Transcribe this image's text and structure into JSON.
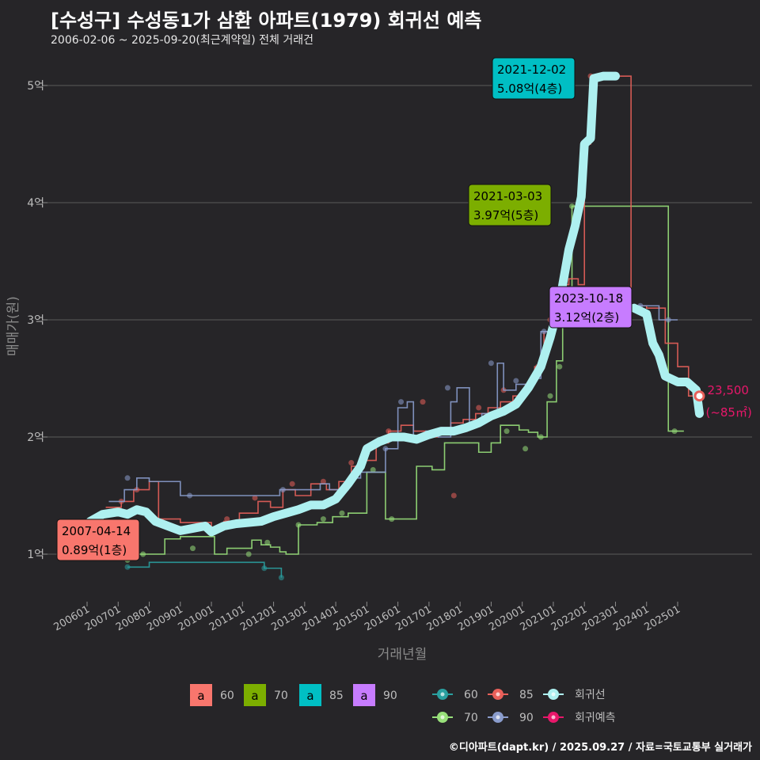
{
  "title": "[수성구] 수성동1가 삼환 아파트(1979) 회귀선 예측",
  "subtitle": "2006-02-06 ~ 2025-09-20(최근계약일) 전체 거래건",
  "footer": "©디아파트(dapt.kr) / 2025.09.27 / 자료=국토교통부 실거래가",
  "colors": {
    "background": "#262528",
    "grid": "#5a5a5a",
    "area60": "#f8766d",
    "area70": "#7cae00",
    "area85": "#00bfc4",
    "area90": "#c77cff",
    "line60": "#2aa0a0",
    "line70": "#98e07a",
    "line85": "#e8605a",
    "line90": "#8a9ccc",
    "regression": "#aef0f0",
    "forecast": "#e8176a"
  },
  "chart_data": {
    "type": "line",
    "xlabel": "거래년월",
    "ylabel": "매매가(원)",
    "x_domain": [
      "2006-01",
      "2026-01"
    ],
    "ylim": [
      0.6,
      5.3
    ],
    "x_ticks": [
      "200601",
      "200701",
      "200801",
      "200901",
      "201001",
      "201101",
      "201201",
      "201301",
      "201401",
      "201501",
      "201601",
      "201701",
      "201801",
      "201901",
      "202001",
      "202101",
      "202201",
      "202301",
      "202401",
      "202501"
    ],
    "y_ticks": [
      {
        "value": 1,
        "label": "1억"
      },
      {
        "value": 2,
        "label": "2억"
      },
      {
        "value": 3,
        "label": "3억"
      },
      {
        "value": 4,
        "label": "4억"
      },
      {
        "value": 5,
        "label": "5억"
      }
    ],
    "grid": true,
    "series": [
      {
        "name": "60",
        "key": "line60",
        "style": "step",
        "values": [
          [
            2007.3,
            0.89
          ],
          [
            2008.0,
            0.93
          ],
          [
            2011.7,
            0.88
          ],
          [
            2012.1,
            0.88
          ],
          [
            2012.25,
            0.8
          ]
        ],
        "points": [
          [
            2007.3,
            0.89
          ],
          [
            2011.7,
            0.88
          ],
          [
            2012.25,
            0.8
          ]
        ]
      },
      {
        "name": "70",
        "key": "line70",
        "style": "step",
        "values": [
          [
            2007.6,
            1.0
          ],
          [
            2008.2,
            1.0
          ],
          [
            2008.5,
            1.13
          ],
          [
            2009.0,
            1.15
          ],
          [
            2010.1,
            1.0
          ],
          [
            2010.5,
            1.05
          ],
          [
            2010.9,
            1.05
          ],
          [
            2011.3,
            1.12
          ],
          [
            2011.6,
            1.08
          ],
          [
            2011.9,
            1.06
          ],
          [
            2012.2,
            1.02
          ],
          [
            2012.4,
            1.0
          ],
          [
            2012.8,
            1.25
          ],
          [
            2013.4,
            1.27
          ],
          [
            2013.9,
            1.32
          ],
          [
            2014.4,
            1.35
          ],
          [
            2015.0,
            1.7
          ],
          [
            2015.4,
            1.7
          ],
          [
            2015.6,
            1.3
          ],
          [
            2016.2,
            1.3
          ],
          [
            2016.6,
            1.75
          ],
          [
            2017.1,
            1.72
          ],
          [
            2017.5,
            1.95
          ],
          [
            2018.0,
            1.95
          ],
          [
            2018.6,
            1.87
          ],
          [
            2019.0,
            1.95
          ],
          [
            2019.3,
            2.1
          ],
          [
            2019.6,
            2.1
          ],
          [
            2019.9,
            2.06
          ],
          [
            2020.2,
            2.04
          ],
          [
            2020.5,
            2.0
          ],
          [
            2020.8,
            2.3
          ],
          [
            2021.1,
            2.65
          ],
          [
            2021.3,
            3.2
          ],
          [
            2021.6,
            3.97
          ],
          [
            2021.8,
            3.97
          ],
          [
            2024.7,
            2.05
          ],
          [
            2025.2,
            2.05
          ]
        ],
        "points": [
          [
            2007.3,
            0.95
          ],
          [
            2007.8,
            1.0
          ],
          [
            2009.4,
            1.05
          ],
          [
            2011.2,
            1.0
          ],
          [
            2011.8,
            1.1
          ],
          [
            2012.8,
            1.25
          ],
          [
            2013.6,
            1.3
          ],
          [
            2014.2,
            1.35
          ],
          [
            2015.2,
            1.72
          ],
          [
            2015.8,
            1.3
          ],
          [
            2019.5,
            2.05
          ],
          [
            2020.1,
            1.9
          ],
          [
            2020.6,
            2.0
          ],
          [
            2020.9,
            2.35
          ],
          [
            2021.2,
            2.6
          ],
          [
            2021.6,
            3.97
          ],
          [
            2024.9,
            2.05
          ]
        ]
      },
      {
        "name": "85",
        "key": "line85",
        "style": "step",
        "values": [
          [
            2006.6,
            1.4
          ],
          [
            2007.1,
            1.45
          ],
          [
            2007.5,
            1.55
          ],
          [
            2008.0,
            1.62
          ],
          [
            2008.3,
            1.3
          ],
          [
            2009.0,
            1.27
          ],
          [
            2009.6,
            1.27
          ],
          [
            2010.0,
            1.22
          ],
          [
            2010.4,
            1.28
          ],
          [
            2010.9,
            1.35
          ],
          [
            2011.5,
            1.45
          ],
          [
            2011.9,
            1.4
          ],
          [
            2012.3,
            1.55
          ],
          [
            2012.7,
            1.5
          ],
          [
            2013.2,
            1.6
          ],
          [
            2013.7,
            1.55
          ],
          [
            2014.1,
            1.62
          ],
          [
            2014.5,
            1.75
          ],
          [
            2014.9,
            1.8
          ],
          [
            2015.3,
            1.95
          ],
          [
            2015.7,
            2.05
          ],
          [
            2016.1,
            2.1
          ],
          [
            2016.5,
            2.05
          ],
          [
            2016.9,
            2.0
          ],
          [
            2017.3,
            2.05
          ],
          [
            2017.7,
            2.12
          ],
          [
            2018.1,
            2.15
          ],
          [
            2018.5,
            2.2
          ],
          [
            2018.9,
            2.25
          ],
          [
            2019.3,
            2.3
          ],
          [
            2019.7,
            2.35
          ],
          [
            2020.1,
            2.45
          ],
          [
            2020.4,
            2.6
          ],
          [
            2020.7,
            2.9
          ],
          [
            2021.0,
            3.1
          ],
          [
            2021.3,
            3.3
          ],
          [
            2021.5,
            3.35
          ],
          [
            2021.8,
            3.3
          ],
          [
            2022.0,
            4.5
          ],
          [
            2022.2,
            5.08
          ],
          [
            2022.9,
            5.08
          ],
          [
            2023.5,
            3.12
          ],
          [
            2024.0,
            3.1
          ],
          [
            2024.6,
            2.8
          ],
          [
            2025.0,
            2.6
          ],
          [
            2025.35,
            2.35
          ],
          [
            2025.7,
            2.35
          ]
        ],
        "points": [
          [
            2007.1,
            1.45
          ],
          [
            2007.6,
            1.55
          ],
          [
            2010.5,
            1.3
          ],
          [
            2011.4,
            1.48
          ],
          [
            2012.6,
            1.6
          ],
          [
            2013.6,
            1.62
          ],
          [
            2014.5,
            1.78
          ],
          [
            2015.7,
            2.05
          ],
          [
            2016.8,
            2.3
          ],
          [
            2017.8,
            1.5
          ],
          [
            2018.6,
            2.25
          ],
          [
            2019.4,
            2.4
          ],
          [
            2020.5,
            2.6
          ],
          [
            2020.9,
            3.0
          ],
          [
            2021.4,
            3.45
          ],
          [
            2022.2,
            5.08
          ]
        ]
      },
      {
        "name": "90",
        "key": "line90",
        "style": "step",
        "values": [
          [
            2006.7,
            1.45
          ],
          [
            2007.2,
            1.55
          ],
          [
            2007.6,
            1.65
          ],
          [
            2008.0,
            1.62
          ],
          [
            2009.0,
            1.5
          ],
          [
            2009.4,
            1.5
          ],
          [
            2012.2,
            1.55
          ],
          [
            2012.5,
            1.55
          ],
          [
            2013.5,
            1.6
          ],
          [
            2013.8,
            1.55
          ],
          [
            2014.4,
            1.65
          ],
          [
            2014.8,
            1.7
          ],
          [
            2015.6,
            1.9
          ],
          [
            2016.0,
            2.25
          ],
          [
            2016.3,
            2.3
          ],
          [
            2016.5,
            2.0
          ],
          [
            2016.9,
            2.05
          ],
          [
            2017.3,
            2.0
          ],
          [
            2017.7,
            2.3
          ],
          [
            2017.9,
            2.42
          ],
          [
            2018.3,
            2.1
          ],
          [
            2018.7,
            2.2
          ],
          [
            2019.2,
            2.63
          ],
          [
            2019.4,
            2.4
          ],
          [
            2019.8,
            2.45
          ],
          [
            2020.3,
            2.5
          ],
          [
            2020.6,
            2.9
          ],
          [
            2021.0,
            3.1
          ],
          [
            2021.3,
            3.05
          ],
          [
            2023.0,
            3.12
          ],
          [
            2023.8,
            3.12
          ],
          [
            2024.4,
            3.0
          ],
          [
            2025.0,
            3.0
          ]
        ],
        "points": [
          [
            2007.3,
            1.65
          ],
          [
            2009.3,
            1.5
          ],
          [
            2012.3,
            1.55
          ],
          [
            2015.6,
            1.9
          ],
          [
            2016.1,
            2.3
          ],
          [
            2017.6,
            2.42
          ],
          [
            2019.0,
            2.63
          ],
          [
            2019.8,
            2.48
          ],
          [
            2020.7,
            2.9
          ],
          [
            2023.8,
            3.12
          ],
          [
            2024.7,
            3.0
          ]
        ]
      },
      {
        "name": "회귀선",
        "key": "regression",
        "style": "thick",
        "values": [
          [
            2006.1,
            1.28
          ],
          [
            2006.5,
            1.34
          ],
          [
            2007.0,
            1.36
          ],
          [
            2007.3,
            1.34
          ],
          [
            2007.6,
            1.38
          ],
          [
            2007.9,
            1.36
          ],
          [
            2008.2,
            1.28
          ],
          [
            2008.6,
            1.24
          ],
          [
            2009.0,
            1.2
          ],
          [
            2009.4,
            1.22
          ],
          [
            2009.8,
            1.24
          ],
          [
            2010.0,
            1.19
          ],
          [
            2010.4,
            1.24
          ],
          [
            2010.8,
            1.26
          ],
          [
            2011.2,
            1.27
          ],
          [
            2011.6,
            1.28
          ],
          [
            2012.0,
            1.32
          ],
          [
            2012.4,
            1.35
          ],
          [
            2012.8,
            1.38
          ],
          [
            2013.2,
            1.42
          ],
          [
            2013.6,
            1.42
          ],
          [
            2014.0,
            1.47
          ],
          [
            2014.4,
            1.6
          ],
          [
            2014.8,
            1.75
          ],
          [
            2015.0,
            1.9
          ],
          [
            2015.4,
            1.96
          ],
          [
            2015.8,
            2.0
          ],
          [
            2016.2,
            2.0
          ],
          [
            2016.6,
            1.98
          ],
          [
            2017.0,
            2.02
          ],
          [
            2017.4,
            2.05
          ],
          [
            2017.8,
            2.05
          ],
          [
            2018.2,
            2.08
          ],
          [
            2018.6,
            2.12
          ],
          [
            2019.0,
            2.18
          ],
          [
            2019.4,
            2.22
          ],
          [
            2019.8,
            2.28
          ],
          [
            2020.2,
            2.42
          ],
          [
            2020.6,
            2.6
          ],
          [
            2020.9,
            2.85
          ],
          [
            2021.2,
            3.15
          ],
          [
            2021.5,
            3.6
          ],
          [
            2021.7,
            3.8
          ],
          [
            2021.9,
            4.05
          ],
          [
            2022.0,
            4.5
          ],
          [
            2022.2,
            4.55
          ],
          [
            2022.3,
            5.06
          ],
          [
            2022.6,
            5.08
          ],
          [
            2023.0,
            5.08
          ]
        ]
      },
      {
        "name": "회귀선-2",
        "key": "regression",
        "style": "thick",
        "values": [
          [
            2023.6,
            3.1
          ],
          [
            2024.0,
            3.05
          ],
          [
            2024.2,
            2.8
          ],
          [
            2024.4,
            2.7
          ],
          [
            2024.6,
            2.52
          ],
          [
            2025.0,
            2.47
          ],
          [
            2025.3,
            2.47
          ],
          [
            2025.6,
            2.4
          ],
          [
            2025.7,
            2.2
          ]
        ]
      }
    ],
    "forecast_point": {
      "x": 2025.7,
      "y": 2.35,
      "label_value": "23,500",
      "label_unit": "(~85㎡)"
    },
    "annotations": [
      {
        "date": "2007-04-14",
        "value": "0.89억(1층)",
        "fill_key": "area60",
        "x": 2007.3,
        "y": 0.89
      },
      {
        "date": "2021-03-03",
        "value": "3.97억(5층)",
        "fill_key": "area70",
        "x": 2021.17,
        "y": 3.97
      },
      {
        "date": "2021-12-02",
        "value": "5.08억(4층)",
        "fill_key": "area85",
        "x": 2021.92,
        "y": 5.08
      },
      {
        "date": "2023-10-18",
        "value": "3.12억(2층)",
        "fill_key": "area90",
        "x": 2023.8,
        "y": 3.12
      }
    ],
    "legend": {
      "placement": "bottom",
      "area": [
        {
          "glyph": "a",
          "label": "60",
          "key": "area60"
        },
        {
          "glyph": "a",
          "label": "70",
          "key": "area70"
        },
        {
          "glyph": "a",
          "label": "85",
          "key": "area85"
        },
        {
          "glyph": "a",
          "label": "90",
          "key": "area90"
        }
      ],
      "lines": [
        {
          "label": "60",
          "key": "line60"
        },
        {
          "label": "85",
          "key": "line85"
        },
        {
          "label": "회귀선",
          "key": "regression"
        },
        {
          "label": "70",
          "key": "line70"
        },
        {
          "label": "90",
          "key": "line90"
        },
        {
          "label": "회귀예측",
          "key": "forecast"
        }
      ]
    }
  }
}
